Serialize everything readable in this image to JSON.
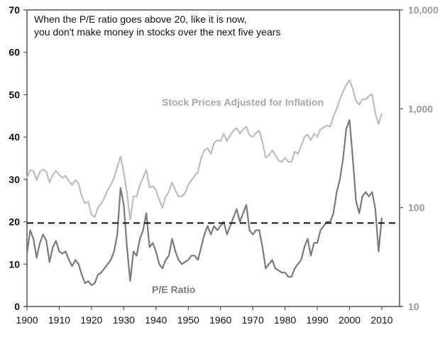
{
  "chart_data": {
    "type": "line",
    "title": "When the P/E ratio goes above 20, like it is now, you don't make money in stocks over the next five years",
    "annotation_lines": [
      "When the P/E ratio goes above 20, like it is now,",
      "you don't make money in stocks over the next five years"
    ],
    "xlabel": "",
    "ylabel_left": "",
    "ylabel_right": "",
    "xlim": [
      1900,
      2014
    ],
    "ylim_left": [
      0,
      70
    ],
    "ylim_right": [
      10,
      10000
    ],
    "right_axis_scale": "log",
    "x_ticks": [
      "1900",
      "1910",
      "1920",
      "1930",
      "1940",
      "1950",
      "1960",
      "1970",
      "1980",
      "1990",
      "2000",
      "2010"
    ],
    "y_ticks_left": [
      "0",
      "10",
      "20",
      "30",
      "40",
      "50",
      "60",
      "70"
    ],
    "y_ticks_right": [
      "10",
      "100",
      "1,000",
      "10,000"
    ],
    "grid": false,
    "reference_line": {
      "axis": "left",
      "value": 19.7,
      "style": "dashed",
      "color": "#111111"
    },
    "series": [
      {
        "name": "Stock Prices Adjusted for Inflation",
        "axis": "right",
        "color": "#bdbdbd",
        "label_position": "upper-middle",
        "x": [
          1900,
          1901,
          1902,
          1903,
          1904,
          1905,
          1906,
          1907,
          1908,
          1909,
          1910,
          1911,
          1912,
          1913,
          1914,
          1915,
          1916,
          1917,
          1918,
          1919,
          1920,
          1921,
          1922,
          1923,
          1924,
          1925,
          1926,
          1927,
          1928,
          1929,
          1930,
          1931,
          1932,
          1933,
          1934,
          1935,
          1936,
          1937,
          1938,
          1939,
          1940,
          1941,
          1942,
          1943,
          1944,
          1945,
          1946,
          1947,
          1948,
          1949,
          1950,
          1951,
          1952,
          1953,
          1954,
          1955,
          1956,
          1957,
          1958,
          1959,
          1960,
          1961,
          1962,
          1963,
          1964,
          1965,
          1966,
          1967,
          1968,
          1969,
          1970,
          1971,
          1972,
          1973,
          1974,
          1975,
          1976,
          1977,
          1978,
          1979,
          1980,
          1981,
          1982,
          1983,
          1984,
          1985,
          1986,
          1987,
          1988,
          1989,
          1990,
          1991,
          1992,
          1993,
          1994,
          1995,
          1996,
          1997,
          1998,
          1999,
          2000,
          2001,
          2002,
          2003,
          2004,
          2005,
          2006,
          2007,
          2008,
          2009,
          2010
        ],
        "values": [
          200,
          240,
          235,
          190,
          230,
          245,
          230,
          180,
          215,
          235,
          215,
          200,
          210,
          185,
          170,
          190,
          175,
          130,
          110,
          115,
          85,
          80,
          100,
          110,
          125,
          150,
          170,
          200,
          260,
          330,
          230,
          140,
          75,
          130,
          130,
          170,
          200,
          240,
          160,
          165,
          150,
          120,
          100,
          130,
          145,
          180,
          150,
          130,
          130,
          140,
          170,
          190,
          210,
          230,
          320,
          380,
          400,
          350,
          450,
          480,
          470,
          560,
          470,
          540,
          600,
          640,
          560,
          620,
          660,
          540,
          520,
          570,
          600,
          460,
          320,
          340,
          380,
          340,
          300,
          290,
          320,
          290,
          290,
          370,
          350,
          420,
          520,
          550,
          480,
          560,
          520,
          620,
          650,
          680,
          660,
          830,
          1000,
          1250,
          1500,
          1750,
          1950,
          1600,
          1200,
          1100,
          1250,
          1250,
          1350,
          1400,
          900,
          700,
          900
        ]
      },
      {
        "name": "P/E Ratio",
        "axis": "left",
        "color": "#7a7a7a",
        "label_position": "lower-middle",
        "x": [
          1900,
          1901,
          1902,
          1903,
          1904,
          1905,
          1906,
          1907,
          1908,
          1909,
          1910,
          1911,
          1912,
          1913,
          1914,
          1915,
          1916,
          1917,
          1918,
          1919,
          1920,
          1921,
          1922,
          1923,
          1924,
          1925,
          1926,
          1927,
          1928,
          1929,
          1930,
          1931,
          1932,
          1933,
          1934,
          1935,
          1936,
          1937,
          1938,
          1939,
          1940,
          1941,
          1942,
          1943,
          1944,
          1945,
          1946,
          1947,
          1948,
          1949,
          1950,
          1951,
          1952,
          1953,
          1954,
          1955,
          1956,
          1957,
          1958,
          1959,
          1960,
          1961,
          1962,
          1963,
          1964,
          1965,
          1966,
          1967,
          1968,
          1969,
          1970,
          1971,
          1972,
          1973,
          1974,
          1975,
          1976,
          1977,
          1978,
          1979,
          1980,
          1981,
          1982,
          1983,
          1984,
          1985,
          1986,
          1987,
          1988,
          1989,
          1990,
          1991,
          1992,
          1993,
          1994,
          1995,
          1996,
          1997,
          1998,
          1999,
          2000,
          2001,
          2002,
          2003,
          2004,
          2005,
          2006,
          2007,
          2008,
          2009,
          2010
        ],
        "values": [
          12.5,
          18,
          16,
          11.5,
          15,
          17,
          15.5,
          10.5,
          14,
          15.5,
          13,
          12.5,
          13,
          11,
          9.5,
          11,
          10,
          7.5,
          5.5,
          6,
          5,
          5.5,
          7.5,
          8,
          9,
          10,
          11,
          13,
          17,
          28,
          24,
          14,
          6,
          13,
          12,
          16,
          18,
          22,
          14,
          15,
          13,
          10,
          9,
          11,
          12,
          16,
          13,
          11,
          10,
          10.5,
          11,
          12,
          12,
          11,
          14,
          17,
          19,
          17,
          19,
          18,
          19,
          20,
          17,
          19,
          21,
          23,
          20,
          22,
          24,
          18,
          17,
          18,
          18,
          14,
          9,
          10,
          11,
          9,
          8.5,
          8,
          8,
          7,
          7,
          9,
          10,
          11,
          14,
          16,
          12,
          15,
          15,
          18,
          19,
          20,
          20,
          22,
          27,
          30,
          35,
          42,
          44,
          35,
          25,
          22,
          26,
          27,
          26,
          27,
          23,
          13,
          21
        ]
      }
    ]
  }
}
